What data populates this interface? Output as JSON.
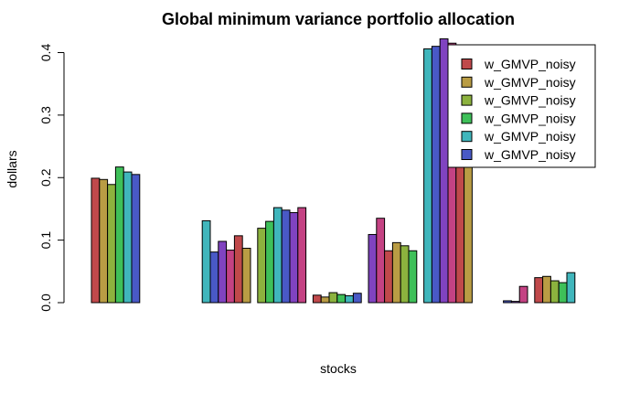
{
  "chart_data": {
    "type": "bar",
    "title": "Global minimum variance portfolio allocation",
    "xlabel": "stocks",
    "ylabel": "dollars",
    "ylim": [
      0,
      0.42
    ],
    "yticks": [
      "0.0",
      "0.1",
      "0.2",
      "0.3",
      "0.4"
    ],
    "ytick_values": [
      0,
      0.1,
      0.2,
      0.3,
      0.4
    ],
    "grid": false,
    "legend_position": "top-right",
    "palette": [
      "#c0494b",
      "#b99c44",
      "#8cb23e",
      "#3ec059",
      "#40b6bc",
      "#4959c6",
      "#8043c0",
      "#c44283"
    ],
    "groups": [
      [
        0.199,
        0.197,
        0.189,
        0.217,
        0.209,
        0.205
      ],
      [
        0.0,
        0.0,
        0.0,
        0.0,
        0.0,
        0.0
      ],
      [
        0.131,
        0.081,
        0.098,
        0.084,
        0.107,
        0.087
      ],
      [
        0.119,
        0.13,
        0.152,
        0.148,
        0.144,
        0.152
      ],
      [
        0.012,
        0.009,
        0.016,
        0.013,
        0.011,
        0.015
      ],
      [
        0.109,
        0.135,
        0.083,
        0.096,
        0.091,
        0.083
      ],
      [
        0.406,
        0.41,
        0.422,
        0.415,
        0.409,
        0.409
      ],
      [
        0.0,
        0.0,
        0.0,
        0.003,
        0.002,
        0.026
      ],
      [
        0.04,
        0.042,
        0.035,
        0.032,
        0.048,
        0.0
      ]
    ],
    "legend": {
      "entries": [
        "w_GMVP_noisy",
        "w_GMVP_noisy",
        "w_GMVP_noisy",
        "w_GMVP_noisy",
        "w_GMVP_noisy",
        "w_GMVP_noisy"
      ],
      "colors": [
        "#c0494b",
        "#b99c44",
        "#8cb23e",
        "#3ec059",
        "#40b6bc",
        "#4959c6"
      ]
    }
  }
}
